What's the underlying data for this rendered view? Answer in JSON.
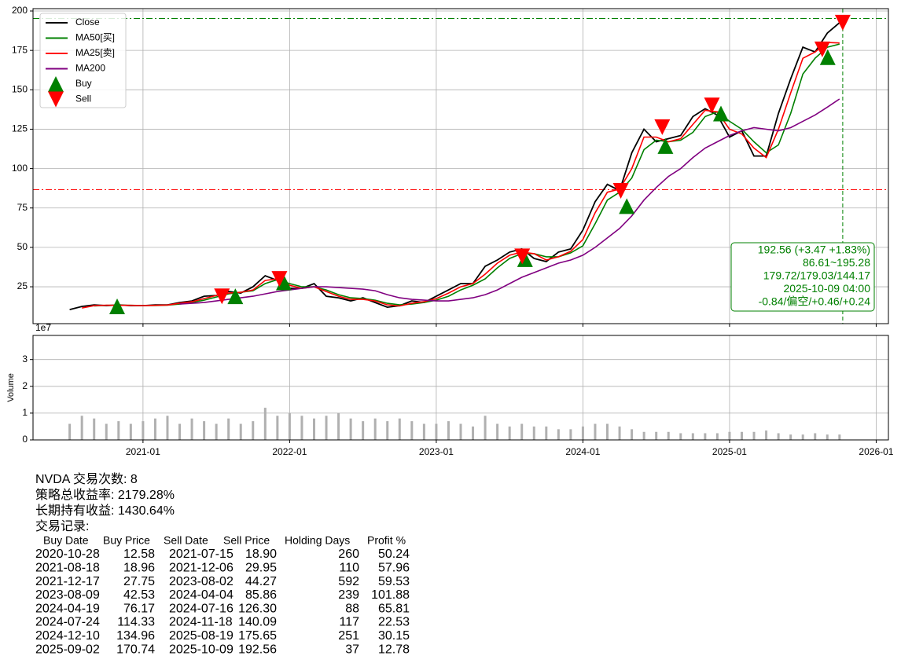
{
  "chart_data": [
    {
      "type": "line",
      "x": [
        "2020-07",
        "2020-08",
        "2020-09",
        "2020-10",
        "2020-11",
        "2020-12",
        "2021-01",
        "2021-02",
        "2021-03",
        "2021-04",
        "2021-05",
        "2021-06",
        "2021-07",
        "2021-08",
        "2021-09",
        "2021-10",
        "2021-11",
        "2021-12",
        "2022-01",
        "2022-02",
        "2022-03",
        "2022-04",
        "2022-05",
        "2022-06",
        "2022-07",
        "2022-08",
        "2022-09",
        "2022-10",
        "2022-11",
        "2022-12",
        "2023-01",
        "2023-02",
        "2023-03",
        "2023-04",
        "2023-05",
        "2023-06",
        "2023-07",
        "2023-08",
        "2023-09",
        "2023-10",
        "2023-11",
        "2023-12",
        "2024-01",
        "2024-02",
        "2024-03",
        "2024-04",
        "2024-05",
        "2024-06",
        "2024-07",
        "2024-08",
        "2024-09",
        "2024-10",
        "2024-11",
        "2024-12",
        "2025-01",
        "2025-02",
        "2025-03",
        "2025-04",
        "2025-05",
        "2025-06",
        "2025-07",
        "2025-08",
        "2025-09",
        "2025-10"
      ],
      "series": [
        {
          "name": "Close",
          "color": "#000000",
          "values": [
            10.5,
            12.5,
            13.5,
            13,
            13.5,
            13,
            13,
            13.5,
            13.5,
            15,
            16,
            19,
            19.5,
            22,
            21,
            25,
            32,
            29,
            24,
            24,
            27,
            19,
            18,
            16,
            18,
            15,
            12,
            13,
            16,
            15,
            19,
            23,
            27,
            27,
            38,
            42,
            47,
            49,
            43,
            41,
            47,
            49,
            61,
            79,
            90,
            86,
            110,
            125,
            117,
            119,
            121,
            133,
            138,
            134,
            120,
            124,
            108,
            108,
            135,
            157,
            177,
            174,
            186,
            192.56
          ]
        },
        {
          "name": "MA50[买]",
          "color": "#008000",
          "values": [
            null,
            null,
            12.8,
            13.2,
            13.3,
            13.2,
            13.1,
            13.1,
            13.3,
            14,
            15,
            16.5,
            18.5,
            20.5,
            21.5,
            22.5,
            27,
            29.5,
            27,
            25,
            25,
            23,
            20,
            18,
            17.5,
            16.5,
            14.5,
            13.5,
            14,
            15,
            16.5,
            19,
            23,
            26,
            30,
            37,
            43,
            46,
            46,
            44,
            44,
            46.5,
            51,
            65,
            80,
            85,
            94,
            112,
            118,
            117,
            118,
            123,
            133,
            136,
            130,
            125,
            117,
            110,
            115,
            135,
            160,
            170,
            177,
            179.03
          ]
        },
        {
          "name": "MA25[卖]",
          "color": "#ff0000",
          "values": [
            null,
            11.5,
            13,
            13.3,
            13.2,
            13.2,
            13,
            13.2,
            13.4,
            14.5,
            15.5,
            17.5,
            19.5,
            21,
            21.5,
            23,
            29,
            30,
            26,
            24,
            25,
            22,
            19,
            17,
            17,
            16,
            13.5,
            12.8,
            14.5,
            15.5,
            17.5,
            21,
            25,
            27,
            33,
            40,
            45,
            47,
            46,
            42,
            44,
            47.5,
            55,
            72,
            85,
            87,
            100,
            120,
            120,
            117,
            119,
            128,
            137,
            136,
            125,
            122,
            113,
            107,
            125,
            148,
            170,
            174,
            180,
            179.72
          ]
        },
        {
          "name": "MA200",
          "color": "#800080",
          "values": [
            null,
            null,
            null,
            null,
            null,
            null,
            null,
            null,
            null,
            14,
            14.5,
            15,
            16,
            17,
            18,
            19,
            20.5,
            22,
            23,
            24,
            25,
            25,
            24.5,
            24,
            23.5,
            22.5,
            20,
            18,
            17,
            16.5,
            16,
            16,
            17,
            18,
            20,
            23,
            27,
            31,
            34,
            37,
            40,
            42,
            45,
            50,
            56,
            62,
            70,
            80,
            88,
            95,
            100,
            107,
            113,
            117,
            121,
            124,
            126,
            125,
            124,
            126,
            130,
            134,
            139,
            144.17
          ]
        },
        {
          "name": "Buy",
          "color": "#008000",
          "marker": "up",
          "x": [
            "2020-10-28",
            "2021-08-18",
            "2021-12-17",
            "2023-08-09",
            "2024-04-19",
            "2024-07-24",
            "2024-12-10",
            "2025-09-02"
          ],
          "values": [
            12.58,
            18.96,
            27.75,
            42.53,
            76.17,
            114.33,
            134.96,
            170.74
          ]
        },
        {
          "name": "Sell",
          "color": "#ff0000",
          "marker": "down",
          "x": [
            "2021-07-15",
            "2021-12-06",
            "2023-08-02",
            "2024-04-04",
            "2024-07-16",
            "2024-11-18",
            "2025-08-19",
            "2025-10-09"
          ],
          "values": [
            18.9,
            29.95,
            44.27,
            85.86,
            126.3,
            140.09,
            175.65,
            192.56
          ]
        }
      ],
      "xlim": [
        "2020-04",
        "2026-02"
      ],
      "xticks": [
        "2021-01",
        "2022-01",
        "2023-01",
        "2024-01",
        "2025-01",
        "2026-01"
      ],
      "ylim": [
        1.6,
        201.5
      ],
      "yticks": [
        25,
        50,
        75,
        100,
        125,
        150,
        175,
        200
      ],
      "grid": true,
      "legend": "upper left",
      "hlines": [
        {
          "value": 195.28,
          "color": "#008000"
        },
        {
          "value": 86.61,
          "color": "#ff0000"
        }
      ],
      "vline": {
        "x": "2025-10-09",
        "color": "#008000"
      },
      "annotation": [
        "192.56 (+3.47 +1.83%)",
        "86.61~195.28",
        "179.72/179.03/144.17",
        "2025-10-09 04:00",
        "-0.84/偏空/+0.46/+0.24"
      ]
    },
    {
      "type": "bar",
      "y_label": "Volume",
      "offset_label": "1e7",
      "color": "#b0b0b0",
      "x": [
        "2020-07",
        "2020-08",
        "2020-09",
        "2020-10",
        "2020-11",
        "2020-12",
        "2021-01",
        "2021-02",
        "2021-03",
        "2021-04",
        "2021-05",
        "2021-06",
        "2021-07",
        "2021-08",
        "2021-09",
        "2021-10",
        "2021-11",
        "2021-12",
        "2022-01",
        "2022-02",
        "2022-03",
        "2022-04",
        "2022-05",
        "2022-06",
        "2022-07",
        "2022-08",
        "2022-09",
        "2022-10",
        "2022-11",
        "2022-12",
        "2023-01",
        "2023-02",
        "2023-03",
        "2023-04",
        "2023-05",
        "2023-06",
        "2023-07",
        "2023-08",
        "2023-09",
        "2023-10",
        "2023-11",
        "2023-12",
        "2024-01",
        "2024-02",
        "2024-03",
        "2024-04",
        "2024-05",
        "2024-06",
        "2024-07",
        "2024-08",
        "2024-09",
        "2024-10",
        "2024-11",
        "2024-12",
        "2025-01",
        "2025-02",
        "2025-03",
        "2025-04",
        "2025-05",
        "2025-06",
        "2025-07",
        "2025-08",
        "2025-09",
        "2025-10"
      ],
      "values": [
        6000000,
        9000000,
        8000000,
        6000000,
        7000000,
        6000000,
        7000000,
        8000000,
        9000000,
        6000000,
        8000000,
        7000000,
        6000000,
        8000000,
        6000000,
        7000000,
        12000000,
        9000000,
        10000000,
        9000000,
        8000000,
        9000000,
        10000000,
        8000000,
        7000000,
        8000000,
        7000000,
        8000000,
        7000000,
        6000000,
        6000000,
        7000000,
        6000000,
        5000000,
        9000000,
        6000000,
        5000000,
        6000000,
        5000000,
        5000000,
        4000000,
        4000000,
        5000000,
        6000000,
        6000000,
        5000000,
        4000000,
        3000000,
        3000000,
        3000000,
        2500000,
        2500000,
        2500000,
        2500000,
        3000000,
        3000000,
        3000000,
        3500000,
        2500000,
        2000000,
        2000000,
        2500000,
        2000000,
        2000000
      ],
      "xlim": [
        "2020-04",
        "2026-02"
      ],
      "xticks": [
        "2021-01",
        "2022-01",
        "2023-01",
        "2024-01",
        "2025-01",
        "2026-01"
      ],
      "ylim": [
        0,
        39000000
      ],
      "yticks": [
        0,
        {
          "value": 10000000,
          "label": "1"
        },
        {
          "value": 20000000,
          "label": "2"
        },
        {
          "value": 30000000,
          "label": "3"
        }
      ],
      "grid": true
    }
  ],
  "report": {
    "lines": [
      "NVDA 交易次数: 8",
      "策略总收益率: 2179.28%",
      "长期持有收益: 1430.64%",
      "交易记录:"
    ],
    "columns": [
      "Buy Date",
      "Buy Price",
      "Sell Date",
      "Sell Price",
      "Holding Days",
      "Profit %"
    ],
    "rows": [
      [
        "2020-10-28",
        "12.58",
        "2021-07-15",
        "18.90",
        "260",
        "50.24"
      ],
      [
        "2021-08-18",
        "18.96",
        "2021-12-06",
        "29.95",
        "110",
        "57.96"
      ],
      [
        "2021-12-17",
        "27.75",
        "2023-08-02",
        "44.27",
        "592",
        "59.53"
      ],
      [
        "2023-08-09",
        "42.53",
        "2024-04-04",
        "85.86",
        "239",
        "101.88"
      ],
      [
        "2024-04-19",
        "76.17",
        "2024-07-16",
        "126.30",
        "88",
        "65.81"
      ],
      [
        "2024-07-24",
        "114.33",
        "2024-11-18",
        "140.09",
        "117",
        "22.53"
      ],
      [
        "2024-12-10",
        "134.96",
        "2025-08-19",
        "175.65",
        "251",
        "30.15"
      ],
      [
        "2025-09-02",
        "170.74",
        "2025-10-09",
        "192.56",
        "37",
        "12.78"
      ]
    ]
  }
}
